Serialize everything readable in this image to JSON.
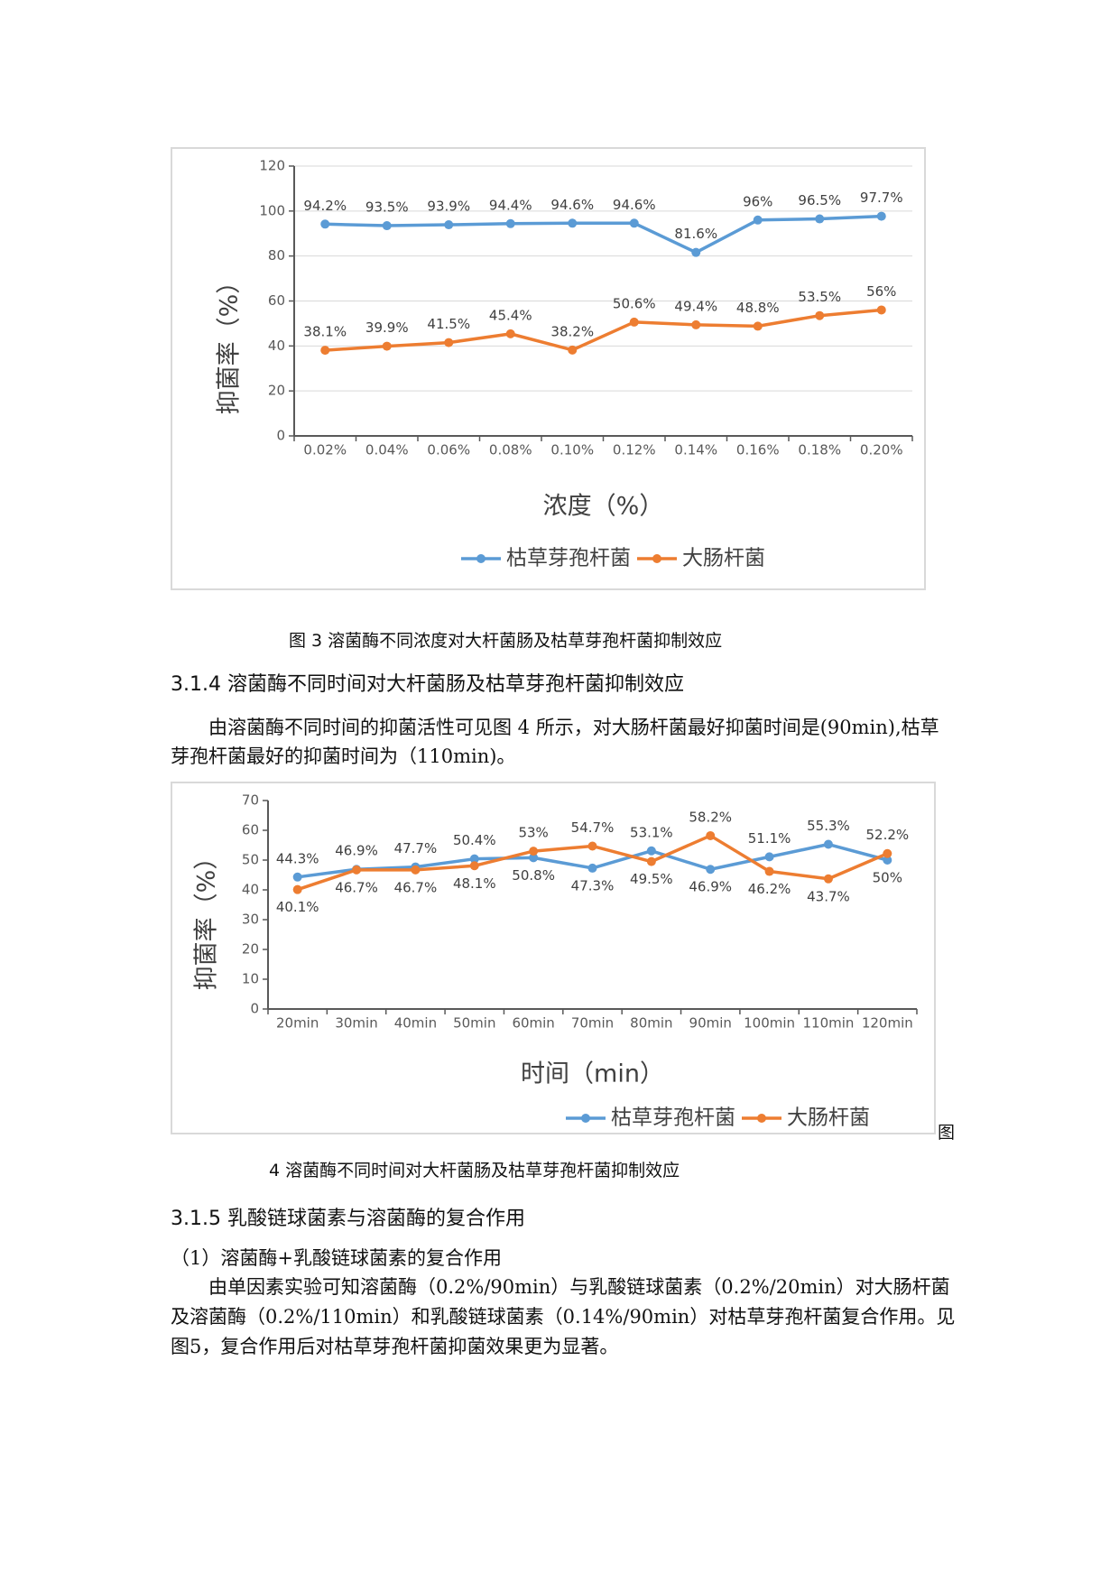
{
  "chart_data": [
    {
      "type": "line",
      "x_label": "浓度（%）",
      "y_label": "抑菌率（%）",
      "categories": [
        "0.02%",
        "0.04%",
        "0.06%",
        "0.08%",
        "0.10%",
        "0.12%",
        "0.14%",
        "0.16%",
        "0.18%",
        "0.20%"
      ],
      "series": [
        {
          "name": "枯草芽孢杆菌",
          "color": "#5b9bd5",
          "values": [
            94.2,
            93.5,
            93.9,
            94.4,
            94.6,
            94.6,
            81.6,
            96,
            96.5,
            97.7
          ],
          "value_labels": [
            "94.2%",
            "93.5%",
            "93.9%",
            "94.4%",
            "94.6%",
            "94.6%",
            "81.6%",
            "96%",
            "96.5%",
            "97.7%"
          ]
        },
        {
          "name": "大肠杆菌",
          "color": "#ed7d31",
          "values": [
            38.1,
            39.9,
            41.5,
            45.4,
            38.2,
            50.6,
            49.4,
            48.8,
            53.5,
            56
          ],
          "value_labels": [
            "38.1%",
            "39.9%",
            "41.5%",
            "45.4%",
            "38.2%",
            "50.6%",
            "49.4%",
            "48.8%",
            "53.5%",
            "56%"
          ]
        }
      ],
      "ylim": [
        0,
        120
      ],
      "yticks": [
        0,
        20,
        40,
        60,
        80,
        100,
        120
      ],
      "grid": true,
      "legend": "bottom"
    },
    {
      "type": "line",
      "x_label": "时间（min）",
      "y_label": "抑菌率（%）",
      "categories": [
        "20min",
        "30min",
        "40min",
        "50min",
        "60min",
        "70min",
        "80min",
        "90min",
        "100min",
        "110min",
        "120min"
      ],
      "series": [
        {
          "name": "枯草芽孢杆菌",
          "color": "#5b9bd5",
          "values": [
            44.3,
            46.9,
            47.7,
            50.4,
            50.8,
            47.3,
            53.1,
            46.9,
            51.1,
            55.3,
            50
          ],
          "value_labels": [
            "44.3%",
            "46.9%",
            "47.7%",
            "50.4%",
            "50.8%",
            "47.3%",
            "53.1%",
            "46.9%",
            "51.1%",
            "55.3%",
            "50%"
          ]
        },
        {
          "name": "大肠杆菌",
          "color": "#ed7d31",
          "values": [
            40.1,
            46.7,
            46.7,
            48.1,
            53,
            54.7,
            49.5,
            58.2,
            46.2,
            43.7,
            52.2
          ],
          "value_labels": [
            "40.1%",
            "46.7%",
            "46.7%",
            "48.1%",
            "53%",
            "54.7%",
            "49.5%",
            "58.2%",
            "46.2%",
            "43.7%",
            "52.2%"
          ]
        }
      ],
      "ylim": [
        0,
        70
      ],
      "yticks": [
        0,
        10,
        20,
        30,
        40,
        50,
        60,
        70
      ],
      "grid": false,
      "legend": "bottom"
    }
  ],
  "document": {
    "caption_3": "图 3 溶菌酶不同浓度对大杆菌肠及枯草芽孢杆菌抑制效应",
    "heading_314": "3.1.4 溶菌酶不同时间对大杆菌肠及枯草芽孢杆菌抑制效应",
    "para_314": "由溶菌酶不同时间的抑菌活性可见图 4 所示，对大肠杆菌最好抑菌时间是(90min),枯草芽孢杆菌最好的抑菌时间为（110min)。",
    "caption_4_prefix": "图",
    "caption_4": "4 溶菌酶不同时间对大杆菌肠及枯草芽孢杆菌抑制效应",
    "heading_315": "3.1.5 乳酸链球菌素与溶菌酶的复合作用",
    "para_315_1": "（1）溶菌酶+乳酸链球菌素的复合作用",
    "para_315_2": "由单因素实验可知溶菌酶（0.2%/90min）与乳酸链球菌素（0.2%/20min）对大肠杆菌及溶菌酶（0.2%/110min）和乳酸链球菌素（0.14%/90min）对枯草芽孢杆菌复合作用。见图5，复合作用后对枯草芽孢杆菌抑菌效果更为显著。"
  }
}
